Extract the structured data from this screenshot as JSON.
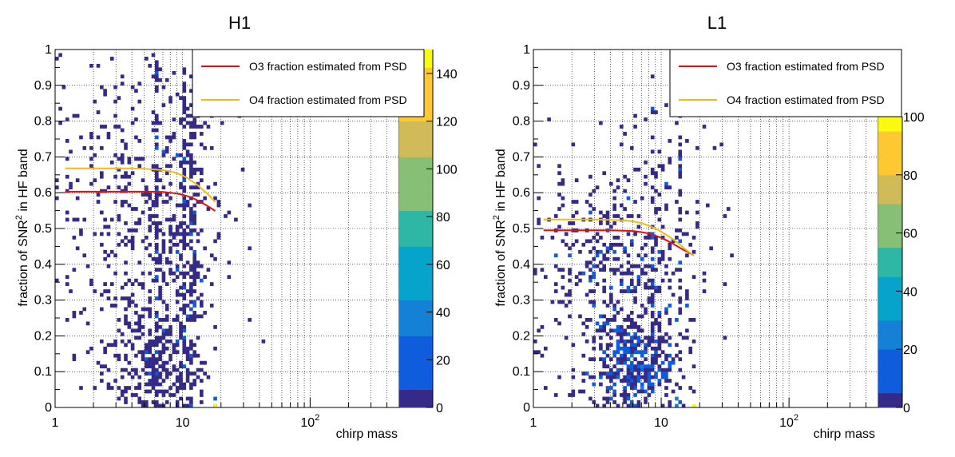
{
  "chart_data": [
    {
      "type": "heatmap",
      "title": "H1",
      "xlabel": "chirp mass",
      "ylabel_main": "fraction of SNR",
      "ylabel_sup": "2",
      "ylabel_tail": " in HF band",
      "x_scale": "log",
      "xlim": [
        1,
        500
      ],
      "ylim": [
        0,
        1
      ],
      "x_ticks": [
        {
          "value": 1,
          "base": "1",
          "exp": ""
        },
        {
          "value": 10,
          "base": "10",
          "exp": ""
        },
        {
          "value": 100,
          "base": "10",
          "exp": "2"
        }
      ],
      "y_ticks": [
        "0",
        "0.1",
        "0.2",
        "0.3",
        "0.4",
        "0.5",
        "0.6",
        "0.7",
        "0.8",
        "0.9",
        "1"
      ],
      "z_range": [
        0,
        150
      ],
      "z_ticks": [
        "0",
        "20",
        "40",
        "60",
        "80",
        "100",
        "120",
        "140"
      ],
      "grid": true,
      "legend_position": "top-right",
      "palette": [
        "#352a87",
        "#0f5cdd",
        "#1481d6",
        "#06a4ca",
        "#2eb7a4",
        "#87bf77",
        "#d1bb59",
        "#fec832",
        "#f9fb0e"
      ],
      "series": [
        {
          "name": "O3 fraction estimated from PSD",
          "color": "#dd1111",
          "x": [
            1.2,
            2,
            3,
            4,
            5,
            6,
            7,
            8,
            9,
            10,
            11,
            12,
            13,
            14,
            15,
            16,
            17,
            18
          ],
          "y": [
            0.603,
            0.603,
            0.603,
            0.603,
            0.603,
            0.603,
            0.602,
            0.6,
            0.598,
            0.594,
            0.59,
            0.585,
            0.579,
            0.573,
            0.567,
            0.561,
            0.555,
            0.549
          ]
        },
        {
          "name": "O4 fraction estimated from PSD",
          "color": "#f0bb16",
          "x": [
            1.2,
            2,
            3,
            4,
            5,
            6,
            7,
            8,
            9,
            10,
            11,
            12,
            13,
            14,
            15,
            16,
            17,
            18
          ],
          "y": [
            0.668,
            0.668,
            0.668,
            0.668,
            0.667,
            0.665,
            0.663,
            0.66,
            0.655,
            0.648,
            0.64,
            0.631,
            0.622,
            0.612,
            0.603,
            0.594,
            0.584,
            0.574
          ]
        }
      ],
      "density": {
        "clusters": [
          {
            "x": 5.8,
            "y": 0.12,
            "sx": 0.18,
            "sy": 0.08,
            "n": 260
          },
          {
            "x": 6.2,
            "y": 0.45,
            "sx": 0.3,
            "sy": 0.25,
            "n": 340
          },
          {
            "x": 10.5,
            "y": 0.4,
            "sx": 0.08,
            "sy": 0.28,
            "n": 160
          },
          {
            "x": 3,
            "y": 0.55,
            "sx": 0.35,
            "sy": 0.2,
            "n": 160
          },
          {
            "x": 8,
            "y": 0.8,
            "sx": 0.25,
            "sy": 0.12,
            "n": 60
          }
        ],
        "columns": [
          {
            "x": 6.3,
            "y0": 0.0,
            "y1": 1.0,
            "n": 60
          },
          {
            "x": 10.3,
            "y0": 0.0,
            "y1": 0.95,
            "n": 50
          },
          {
            "x": 11.5,
            "y0": 0.0,
            "y1": 0.85,
            "n": 40
          },
          {
            "x": 12.5,
            "y0": 0.0,
            "y1": 0.85,
            "n": 30
          }
        ],
        "hot_bins": [
          {
            "x": 18.0,
            "y": 0.005,
            "z": 145
          },
          {
            "x": 17.6,
            "y": 0.025,
            "z": 25
          },
          {
            "x": 13.8,
            "y": 0.35,
            "z": 22
          }
        ]
      }
    },
    {
      "type": "heatmap",
      "title": "L1",
      "xlabel": "chirp mass",
      "ylabel_main": "fraction of SNR",
      "ylabel_sup": "2",
      "ylabel_tail": " in HF band",
      "x_scale": "log",
      "xlim": [
        1,
        500
      ],
      "ylim": [
        0,
        1
      ],
      "x_ticks": [
        {
          "value": 1,
          "base": "1",
          "exp": ""
        },
        {
          "value": 10,
          "base": "10",
          "exp": ""
        },
        {
          "value": 100,
          "base": "10",
          "exp": "2"
        }
      ],
      "y_ticks": [
        "0",
        "0.1",
        "0.2",
        "0.3",
        "0.4",
        "0.5",
        "0.6",
        "0.7",
        "0.8",
        "0.9",
        "1"
      ],
      "z_range": [
        0,
        100
      ],
      "z_ticks": [
        "0",
        "20",
        "40",
        "60",
        "80",
        "100"
      ],
      "grid": true,
      "legend_position": "top-right",
      "palette": [
        "#352a87",
        "#0f5cdd",
        "#1481d6",
        "#06a4ca",
        "#2eb7a4",
        "#87bf77",
        "#d1bb59",
        "#fec832",
        "#f9fb0e"
      ],
      "series": [
        {
          "name": "O3 fraction estimated from PSD",
          "color": "#dd1111",
          "x": [
            1.2,
            2,
            3,
            4,
            5,
            6,
            7,
            8,
            9,
            10,
            11,
            12,
            13,
            14,
            15,
            16,
            17,
            18
          ],
          "y": [
            0.495,
            0.495,
            0.495,
            0.495,
            0.494,
            0.493,
            0.49,
            0.486,
            0.48,
            0.474,
            0.467,
            0.46,
            0.453,
            0.446,
            0.44,
            0.435,
            0.43,
            0.425
          ]
        },
        {
          "name": "O4 fraction estimated from PSD",
          "color": "#f0bb16",
          "x": [
            1.2,
            2,
            3,
            4,
            5,
            6,
            7,
            8,
            9,
            10,
            11,
            12,
            13,
            14,
            15,
            16,
            17,
            18
          ],
          "y": [
            0.525,
            0.525,
            0.525,
            0.524,
            0.523,
            0.52,
            0.515,
            0.508,
            0.5,
            0.491,
            0.482,
            0.473,
            0.464,
            0.455,
            0.446,
            0.438,
            0.431,
            0.425
          ]
        }
      ],
      "density": {
        "clusters": [
          {
            "x": 6.0,
            "y": 0.1,
            "sx": 0.17,
            "sy": 0.08,
            "n": 420
          },
          {
            "x": 5.5,
            "y": 0.35,
            "sx": 0.3,
            "sy": 0.18,
            "n": 300
          },
          {
            "x": 2.5,
            "y": 0.4,
            "sx": 0.3,
            "sy": 0.12,
            "n": 150
          },
          {
            "x": 9.0,
            "y": 0.55,
            "sx": 0.25,
            "sy": 0.18,
            "n": 80
          }
        ],
        "columns": [
          {
            "x": 8.5,
            "y0": 0.0,
            "y1": 0.85,
            "n": 30
          },
          {
            "x": 14.0,
            "y0": 0.0,
            "y1": 0.8,
            "n": 25
          }
        ],
        "hot_bins": [
          {
            "x": 13.5,
            "y": 0.005,
            "z": 30
          },
          {
            "x": 13.5,
            "y": 0.025,
            "z": 22
          },
          {
            "x": 18.0,
            "y": 0.005,
            "z": 95
          },
          {
            "x": 6.0,
            "y": 0.1,
            "z": 18
          },
          {
            "x": 5.5,
            "y": 0.08,
            "z": 16
          }
        ]
      }
    }
  ]
}
